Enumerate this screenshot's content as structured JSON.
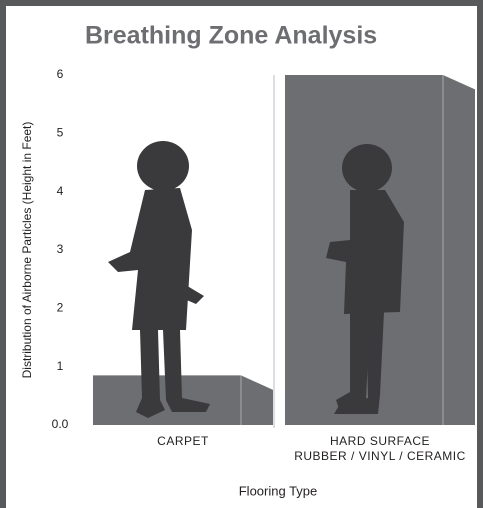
{
  "chart_data": {
    "type": "bar",
    "title": "Breathing Zone Analysis",
    "y_label": "Distribution of Airborne Particles (Height in Feet)",
    "x_label": "Flooring Type",
    "categories": [
      "CARPET",
      "HARD SURFACE\nRUBBER / VINYL / CERAMIC"
    ],
    "values": [
      0.85,
      6
    ],
    "color": "#6d6e71",
    "ylim": [
      0,
      6
    ],
    "yticks": [
      {
        "value": 0,
        "label": "0.0"
      },
      1,
      2,
      3,
      4,
      5,
      6
    ]
  }
}
